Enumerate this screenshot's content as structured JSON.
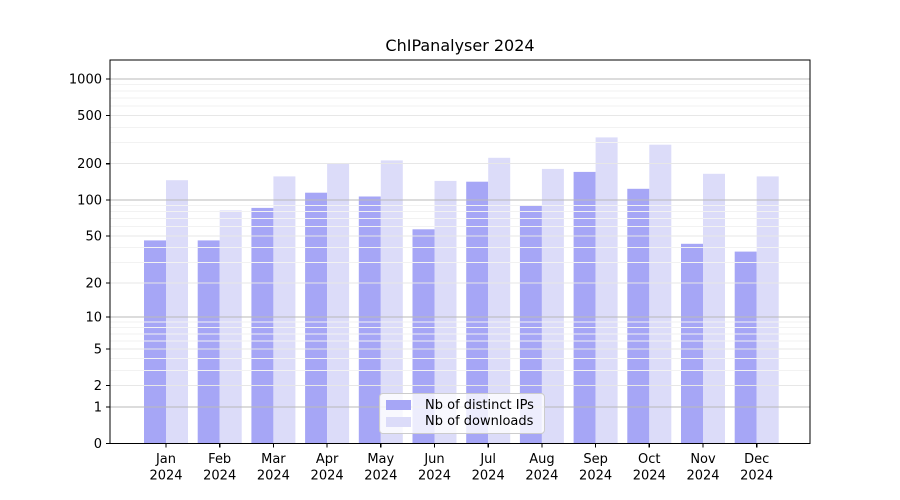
{
  "chart_data": {
    "type": "bar",
    "title": "ChIPanalyser 2024",
    "categories": [
      "Jan",
      "Feb",
      "Mar",
      "Apr",
      "May",
      "Jun",
      "Jul",
      "Aug",
      "Sep",
      "Oct",
      "Nov",
      "Dec"
    ],
    "year": "2024",
    "series": [
      {
        "name": "Nb of distinct IPs",
        "color": "#a6a6f6",
        "values": [
          46,
          46,
          86,
          115,
          107,
          57,
          142,
          90,
          171,
          124,
          43,
          37
        ]
      },
      {
        "name": "Nb of downloads",
        "color": "#dcdcf9",
        "values": [
          146,
          82,
          157,
          202,
          213,
          144,
          224,
          181,
          330,
          287,
          165,
          157
        ]
      }
    ],
    "yscale": "log1p",
    "y_ticks": [
      0,
      1,
      2,
      5,
      10,
      20,
      50,
      100,
      200,
      500,
      1000
    ],
    "ylim": [
      0,
      1430
    ],
    "grid": true,
    "legend_position": "lower center"
  }
}
